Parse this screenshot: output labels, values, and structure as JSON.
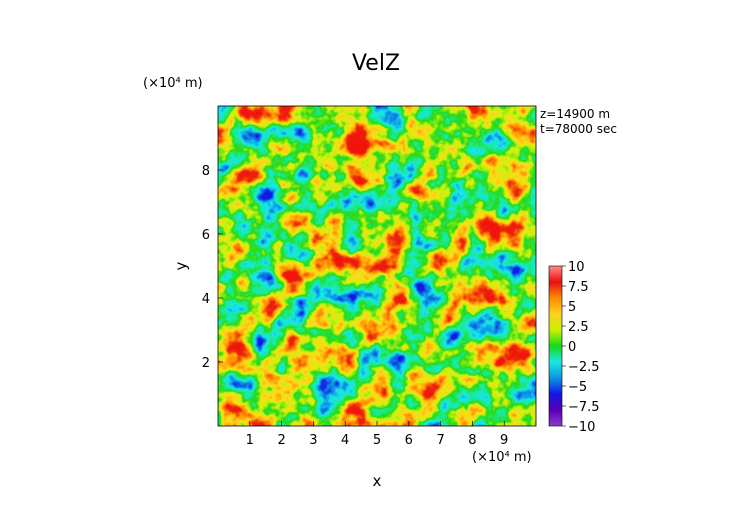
{
  "chart_data": {
    "type": "heatmap",
    "title": "VelZ",
    "xlabel": "x",
    "ylabel": "y",
    "x_unit": "(×10⁴ m)",
    "y_unit": "(×10⁴ m)",
    "xlim": [
      0,
      10
    ],
    "ylim": [
      0,
      10
    ],
    "x_ticks": [
      "1",
      "2",
      "3",
      "4",
      "5",
      "6",
      "7",
      "8",
      "9"
    ],
    "y_ticks": [
      "2",
      "4",
      "6",
      "8"
    ],
    "info_lines": [
      "z=14900 m",
      "t=78000 sec"
    ],
    "colorbar": {
      "labels": [
        "10",
        "7.5",
        "5",
        "2.5",
        "0",
        "−2.5",
        "−5",
        "−7.5",
        "−10"
      ],
      "range": [
        -10,
        10
      ],
      "colors": [
        "#ff8a8a",
        "#e81010",
        "#ff8c00",
        "#ffd21e",
        "#c8f000",
        "#18d818",
        "#18e8e8",
        "#0a96e0",
        "#1414e6",
        "#5a00b4",
        "#8a3cd2"
      ]
    },
    "field_description_colors": {
      "high": "#e81010",
      "mid_high": "#ffd21e",
      "neutral": "#c8f000",
      "low": "#18e8e8",
      "very_low": "#1414e6"
    }
  }
}
